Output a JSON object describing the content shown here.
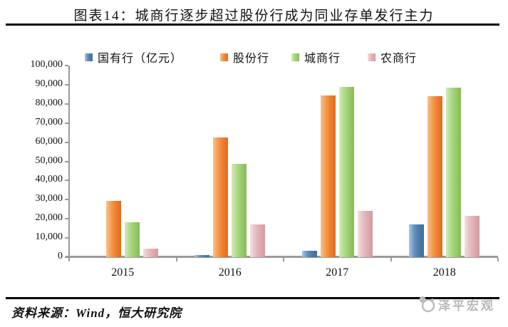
{
  "header": {
    "title": "图表14：城商行逐步超过股份行成为同业存单发行主力"
  },
  "chart_data": {
    "type": "bar",
    "title": "图表14：城商行逐步超过股份行成为同业存单发行主力",
    "unit": "亿元",
    "categories": [
      "2015",
      "2016",
      "2017",
      "2018"
    ],
    "series": [
      {
        "name": "国有行（亿元）",
        "color": "#5585b5",
        "values": [
          0,
          1000,
          3300,
          17000
        ]
      },
      {
        "name": "股份行",
        "color": "#f28a3d",
        "values": [
          29300,
          62500,
          84400,
          83900
        ]
      },
      {
        "name": "城商行",
        "color": "#a6d47d",
        "values": [
          18100,
          48600,
          88800,
          88300
        ]
      },
      {
        "name": "农商行",
        "color": "#e2b6ba",
        "values": [
          4400,
          17200,
          24100,
          21400
        ]
      }
    ],
    "ylim": [
      0,
      100000
    ],
    "ytick_step": 10000,
    "ytick_labels": [
      "0",
      "10,000",
      "20,000",
      "30,000",
      "40,000",
      "50,000",
      "60,000",
      "70,000",
      "80,000",
      "90,000",
      "100,000"
    ],
    "legend_position": "top",
    "grid": false,
    "axis_color": "#9b9b9b"
  },
  "footer": {
    "source": "资料来源：Wind，恒大研究院",
    "watermark": "泽平宏观"
  }
}
